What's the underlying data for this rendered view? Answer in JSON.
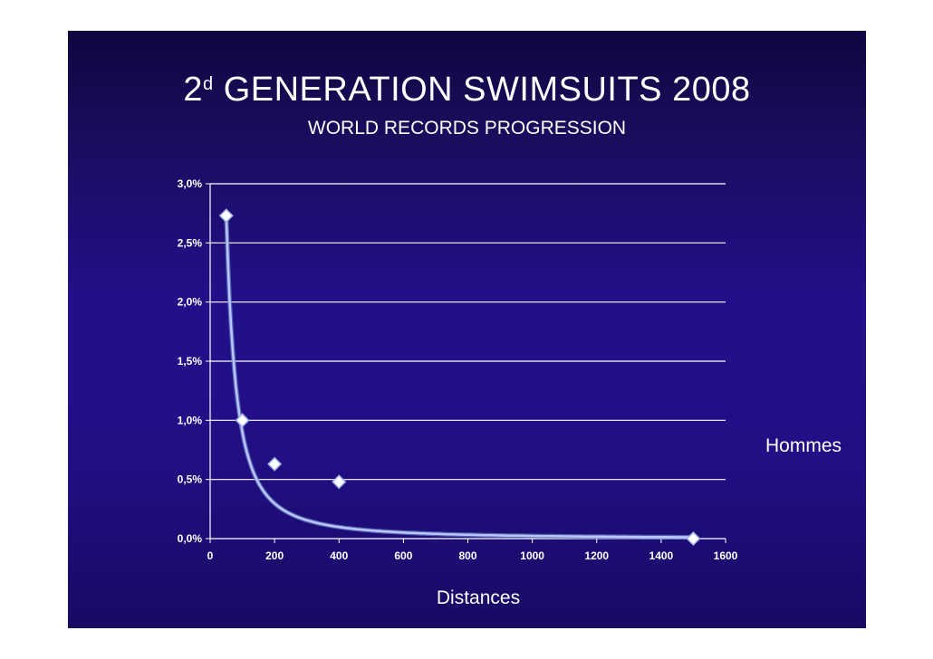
{
  "slide": {
    "title_main": "2",
    "title_sup": "d",
    "title_rest": " GENERATION SWIMSUITS 2008",
    "subtitle": "WORLD RECORDS PROGRESSION"
  },
  "chart_data": {
    "type": "scatter",
    "xlabel": "Distances",
    "ylabel": "",
    "xlim": [
      0,
      1600
    ],
    "ylim": [
      0,
      3.0
    ],
    "x_ticks": [
      0,
      200,
      400,
      600,
      800,
      1000,
      1200,
      1400,
      1600
    ],
    "x_tick_labels": [
      "0",
      "200",
      "400",
      "600",
      "800",
      "1000",
      "1200",
      "1400",
      "1600"
    ],
    "y_ticks": [
      0,
      0.5,
      1.0,
      1.5,
      2.0,
      2.5,
      3.0
    ],
    "y_tick_labels": [
      "0,0%",
      "0,5%",
      "1,0%",
      "1,5%",
      "2,0%",
      "2,5%",
      "3,0%"
    ],
    "grid": true,
    "legend_position": "right",
    "series": [
      {
        "name": "Hommes",
        "x": [
          50,
          100,
          200,
          400,
          1500
        ],
        "y": [
          2.73,
          1.0,
          0.63,
          0.48,
          0.0
        ],
        "trendline": "power",
        "color": "#ffffff"
      }
    ],
    "colors": {
      "background": "#22108a",
      "grid": "#ffffff",
      "trend": "#b8c8ff"
    }
  }
}
